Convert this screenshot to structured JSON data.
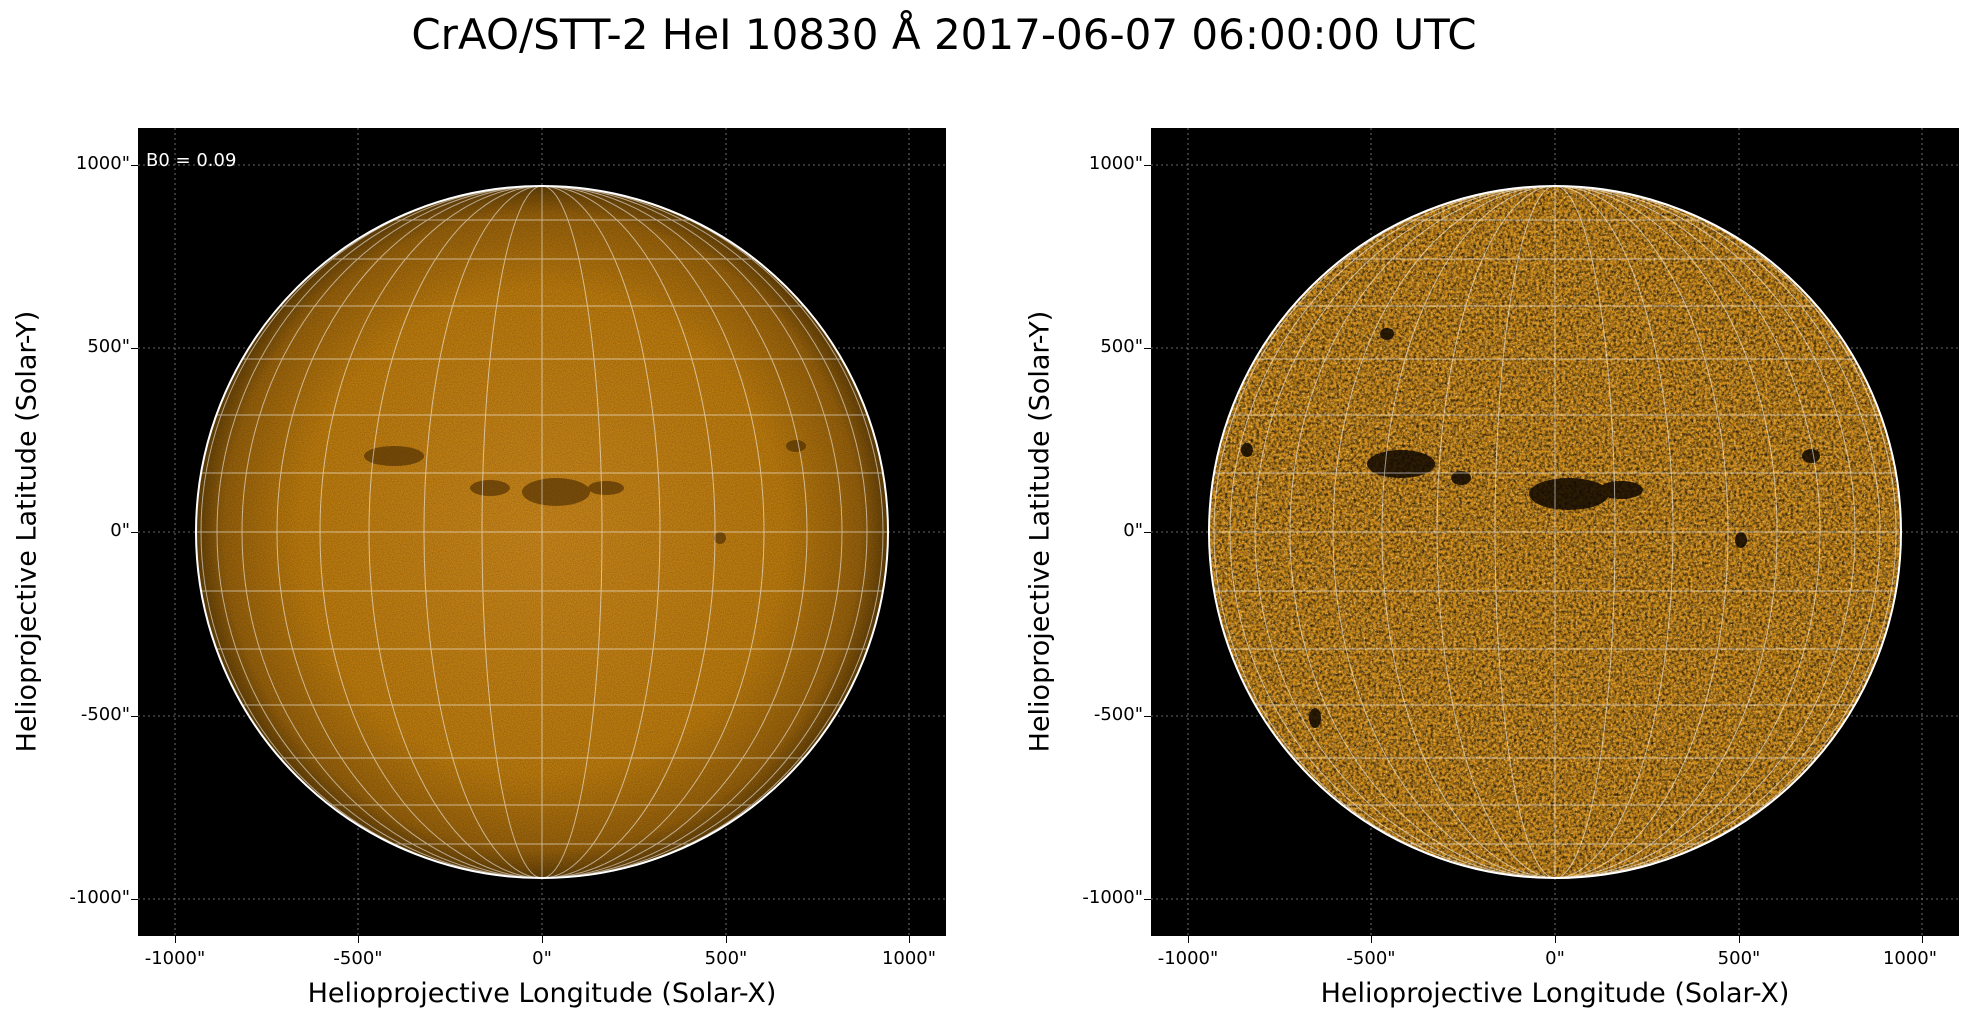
{
  "title": "CrAO/STT-2 HeI 10830 Å 2017-06-07 06:00:00 UTC",
  "annotation": "B0 = 0.09",
  "axes": {
    "xlabel": "Helioprojective Longitude (Solar-X)",
    "ylabel": "Helioprojective Latitude (Solar-Y)",
    "xticks": [
      "-1000\"",
      "-500\"",
      "0\"",
      "500\"",
      "1000\""
    ],
    "yticks": [
      "1000\"",
      "500\"",
      "0\"",
      "-500\"",
      "-1000\""
    ],
    "tick_values": [
      -1000,
      -500,
      0,
      500,
      1000
    ],
    "range": [
      -1100,
      1100
    ]
  },
  "panels": [
    {
      "name": "left",
      "description_style": "raw"
    },
    {
      "name": "right",
      "description_style": "enhanced"
    }
  ],
  "colors": {
    "disk_base": "#c07a10",
    "disk_highlight": "#e89e25",
    "background": "#000000",
    "grid": "#ffffff"
  }
}
